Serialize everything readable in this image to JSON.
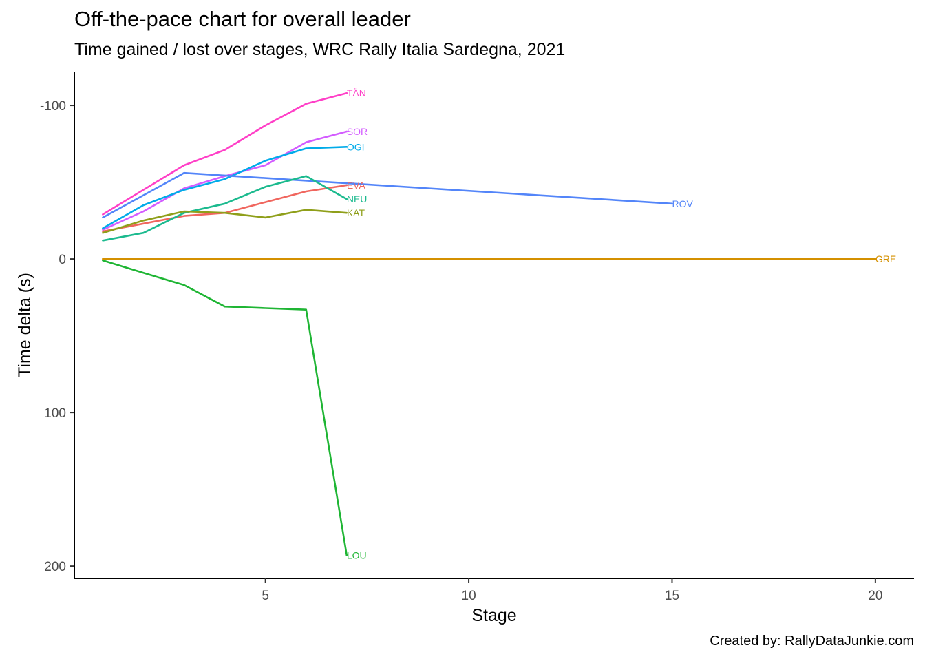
{
  "header": {
    "title": "Off-the-pace chart for overall leader",
    "subtitle": "Time gained / lost over stages, WRC Rally Italia Sardegna, 2021"
  },
  "footer": {
    "caption": "Created by: RallyDataJunkie.com"
  },
  "chart_data": {
    "type": "line",
    "xlabel": "Stage",
    "ylabel": "Time delta (s)",
    "xlim": [
      0.3,
      20.95
    ],
    "ylim": [
      -122,
      208
    ],
    "y_reversed": true,
    "x_ticks": [
      5,
      10,
      15,
      20
    ],
    "y_ticks": [
      -100,
      0,
      100,
      200
    ],
    "y_tick_labels": [
      "-100",
      "0",
      "100",
      "200"
    ],
    "grid": false,
    "legend": "none (series labelled at line ends)",
    "series": [
      {
        "name": "TÄN",
        "color": "#FF3FC7",
        "x": [
          1,
          2,
          3,
          4,
          5,
          6,
          7
        ],
        "y": [
          -29,
          -45,
          -61,
          -71,
          -87,
          -101,
          -108
        ]
      },
      {
        "name": "SOR",
        "color": "#D35CFF",
        "x": [
          1,
          2,
          3,
          4,
          5,
          6,
          7
        ],
        "y": [
          -19,
          -31,
          -46,
          -54,
          -61,
          -76,
          -83
        ]
      },
      {
        "name": "OGI",
        "color": "#00ABE9",
        "x": [
          1,
          2,
          3,
          4,
          5,
          6,
          7
        ],
        "y": [
          -20,
          -35,
          -45,
          -52,
          -64,
          -72,
          -73
        ]
      },
      {
        "name": "ROV",
        "color": "#5385F9",
        "x": [
          1,
          3,
          15
        ],
        "y": [
          -27,
          -56,
          -36
        ]
      },
      {
        "name": "EVA",
        "color": "#F0665E",
        "x": [
          1,
          2,
          3,
          4,
          5,
          6,
          7
        ],
        "y": [
          -18,
          -23,
          -28,
          -30,
          -37,
          -44,
          -48
        ]
      },
      {
        "name": "NEU",
        "color": "#1BBA8E",
        "x": [
          1,
          2,
          3,
          4,
          5,
          6,
          7
        ],
        "y": [
          -12,
          -17,
          -30,
          -36,
          -47,
          -54,
          -39
        ]
      },
      {
        "name": "KAT",
        "color": "#8F9F1A",
        "x": [
          1,
          2,
          3,
          4,
          5,
          6,
          7
        ],
        "y": [
          -17,
          -25,
          -31,
          -30,
          -27,
          -32,
          -30
        ]
      },
      {
        "name": "GRE",
        "color": "#D49000",
        "x": [
          1,
          20
        ],
        "y": [
          0,
          0
        ]
      },
      {
        "name": "LOU",
        "color": "#1FB534",
        "x": [
          1,
          2,
          3,
          4,
          5,
          6,
          7
        ],
        "y": [
          1,
          9,
          17,
          31,
          32,
          33,
          193
        ]
      }
    ]
  }
}
